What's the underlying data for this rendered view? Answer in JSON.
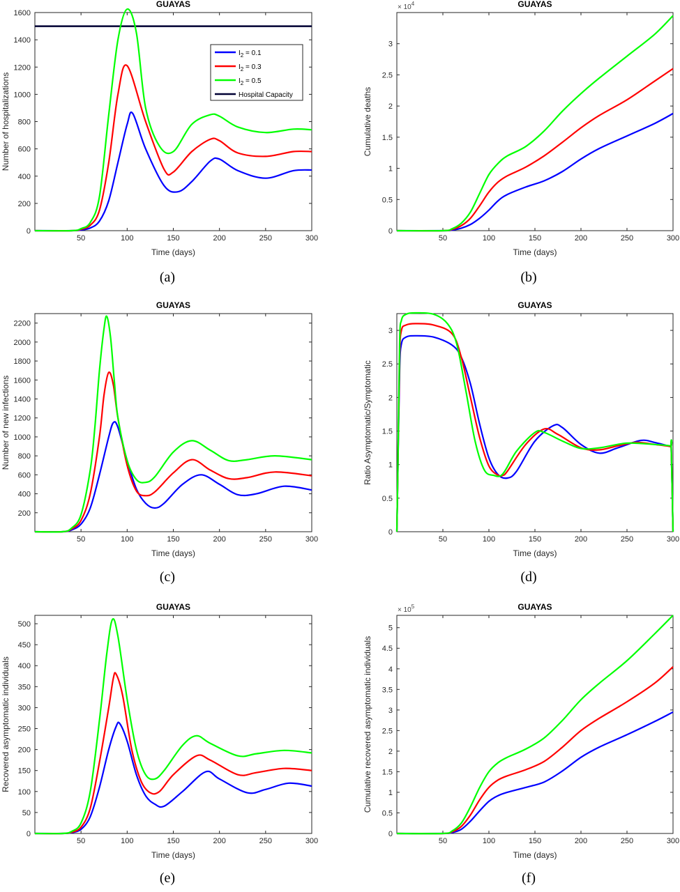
{
  "chart_data": [
    {
      "id": "a",
      "type": "line",
      "title": "GUAYAS",
      "xlabel": "Time (days)",
      "ylabel": "Number of hospitalizations",
      "xlim": [
        0,
        300
      ],
      "ylim": [
        0,
        1600
      ],
      "xticks": [
        50,
        100,
        150,
        200,
        250,
        300
      ],
      "yticks": [
        0,
        200,
        400,
        600,
        800,
        1000,
        1200,
        1400,
        1600
      ],
      "exponent": "",
      "caption": "(a)",
      "legend": {
        "position": "top-right",
        "entries": [
          {
            "pre": "I",
            "sub": "2",
            "post": " = 0.1",
            "color": "#0000ff"
          },
          {
            "pre": "I",
            "sub": "2",
            "post": " = 0.3",
            "color": "#ff0000"
          },
          {
            "pre": "I",
            "sub": "2",
            "post": " = 0.5",
            "color": "#00ff00"
          },
          {
            "pre": "Hospital Capacity",
            "sub": "",
            "post": "",
            "color": "#000033"
          }
        ]
      },
      "hline": {
        "y": 1500,
        "color": "#000033"
      },
      "series": [
        {
          "name": "I2 = 0.1",
          "color": "#0000ff",
          "x": [
            0,
            40,
            50,
            60,
            70,
            80,
            90,
            100,
            106,
            120,
            140,
            155,
            170,
            190,
            200,
            220,
            250,
            280,
            300
          ],
          "y": [
            0,
            0,
            5,
            20,
            70,
            220,
            500,
            780,
            860,
            600,
            330,
            285,
            360,
            510,
            525,
            440,
            385,
            440,
            445
          ]
        },
        {
          "name": "I2 = 0.3",
          "color": "#ff0000",
          "x": [
            0,
            40,
            50,
            60,
            70,
            80,
            90,
            100,
            120,
            140,
            150,
            170,
            190,
            200,
            220,
            250,
            280,
            300
          ],
          "y": [
            0,
            0,
            10,
            40,
            150,
            500,
            1000,
            1210,
            800,
            450,
            430,
            580,
            670,
            660,
            570,
            545,
            580,
            580
          ]
        },
        {
          "name": "I2 = 0.5",
          "color": "#00ff00",
          "x": [
            0,
            40,
            50,
            60,
            70,
            80,
            90,
            100,
            110,
            120,
            135,
            150,
            170,
            190,
            200,
            220,
            250,
            280,
            300
          ],
          "y": [
            0,
            0,
            15,
            60,
            250,
            850,
            1400,
            1625,
            1450,
            900,
            620,
            580,
            780,
            850,
            840,
            760,
            720,
            745,
            740
          ]
        }
      ]
    },
    {
      "id": "b",
      "type": "line",
      "title": "GUAYAS",
      "xlabel": "Time (days)",
      "ylabel": "Cumulative deaths",
      "xlim": [
        0,
        300
      ],
      "ylim": [
        0,
        3.5
      ],
      "xticks": [
        50,
        100,
        150,
        200,
        250,
        300
      ],
      "yticks": [
        0,
        0.5,
        1,
        1.5,
        2,
        2.5,
        3
      ],
      "exponent": "4",
      "caption": "(b)",
      "series": [
        {
          "name": "I2 = 0.1",
          "color": "#0000ff",
          "x": [
            0,
            50,
            60,
            70,
            80,
            90,
            100,
            110,
            120,
            140,
            160,
            180,
            200,
            220,
            250,
            280,
            300
          ],
          "y": [
            0,
            0,
            0.01,
            0.04,
            0.1,
            0.2,
            0.33,
            0.48,
            0.58,
            0.7,
            0.8,
            0.95,
            1.15,
            1.32,
            1.52,
            1.72,
            1.88
          ]
        },
        {
          "name": "I2 = 0.3",
          "color": "#ff0000",
          "x": [
            0,
            50,
            60,
            70,
            80,
            90,
            100,
            110,
            120,
            140,
            160,
            180,
            200,
            220,
            250,
            280,
            300
          ],
          "y": [
            0,
            0,
            0.02,
            0.08,
            0.2,
            0.4,
            0.62,
            0.78,
            0.88,
            1.02,
            1.2,
            1.42,
            1.65,
            1.85,
            2.1,
            2.4,
            2.6
          ]
        },
        {
          "name": "I2 = 0.5",
          "color": "#00ff00",
          "x": [
            0,
            50,
            60,
            70,
            80,
            90,
            100,
            110,
            120,
            140,
            160,
            180,
            200,
            220,
            250,
            280,
            300
          ],
          "y": [
            0,
            0,
            0.03,
            0.12,
            0.3,
            0.6,
            0.9,
            1.08,
            1.2,
            1.35,
            1.6,
            1.92,
            2.2,
            2.45,
            2.8,
            3.15,
            3.45
          ]
        }
      ]
    },
    {
      "id": "c",
      "type": "line",
      "title": "GUAYAS",
      "xlabel": "Time (days)",
      "ylabel": "Number of new infections",
      "xlim": [
        0,
        300
      ],
      "ylim": [
        0,
        2300
      ],
      "xticks": [
        50,
        100,
        150,
        200,
        250,
        300
      ],
      "yticks": [
        200,
        400,
        600,
        800,
        1000,
        1200,
        1400,
        1600,
        1800,
        2000,
        2200
      ],
      "exponent": "",
      "caption": "(c)",
      "series": [
        {
          "name": "I2 = 0.1",
          "color": "#0000ff",
          "x": [
            0,
            30,
            40,
            50,
            60,
            70,
            80,
            85,
            90,
            100,
            110,
            120,
            130,
            140,
            160,
            180,
            200,
            220,
            240,
            270,
            300
          ],
          "y": [
            0,
            0,
            20,
            80,
            250,
            600,
            1000,
            1150,
            1100,
            750,
            450,
            300,
            250,
            300,
            500,
            600,
            500,
            390,
            400,
            480,
            440
          ]
        },
        {
          "name": "I2 = 0.3",
          "color": "#ff0000",
          "x": [
            0,
            30,
            40,
            50,
            60,
            70,
            75,
            80,
            85,
            90,
            100,
            110,
            120,
            130,
            150,
            170,
            190,
            210,
            230,
            260,
            300
          ],
          "y": [
            0,
            0,
            30,
            120,
            400,
            1000,
            1450,
            1680,
            1550,
            1200,
            700,
            430,
            380,
            420,
            620,
            760,
            650,
            560,
            570,
            630,
            590
          ]
        },
        {
          "name": "I2 = 0.5",
          "color": "#00ff00",
          "x": [
            0,
            30,
            40,
            50,
            60,
            65,
            70,
            75,
            78,
            82,
            86,
            90,
            100,
            110,
            120,
            130,
            150,
            170,
            190,
            210,
            230,
            260,
            300
          ],
          "y": [
            0,
            0,
            40,
            180,
            650,
            1100,
            1700,
            2150,
            2270,
            2050,
            1600,
            1200,
            750,
            550,
            520,
            580,
            840,
            960,
            860,
            750,
            760,
            800,
            760
          ]
        }
      ]
    },
    {
      "id": "d",
      "type": "line",
      "title": "GUAYAS",
      "xlabel": "Time (days)",
      "ylabel": "Ratio Asymptomatic/Symptomatic",
      "xlim": [
        0,
        300
      ],
      "ylim": [
        0,
        3.25
      ],
      "xticks": [
        50,
        100,
        150,
        200,
        250,
        300
      ],
      "yticks": [
        0,
        0.5,
        1,
        1.5,
        2,
        2.5,
        3
      ],
      "exponent": "",
      "caption": "(d)",
      "series": [
        {
          "name": "I2 = 0.1",
          "color": "#0000ff",
          "x": [
            0,
            1,
            3,
            5,
            10,
            20,
            40,
            60,
            70,
            80,
            90,
            100,
            110,
            120,
            130,
            150,
            170,
            180,
            200,
            220,
            240,
            265,
            280,
            297,
            298,
            300
          ],
          "y": [
            0,
            0.8,
            2.4,
            2.8,
            2.9,
            2.92,
            2.9,
            2.78,
            2.6,
            2.2,
            1.6,
            1.1,
            0.85,
            0.8,
            0.9,
            1.35,
            1.58,
            1.55,
            1.3,
            1.17,
            1.25,
            1.36,
            1.33,
            1.27,
            1.26,
            0
          ]
        },
        {
          "name": "I2 = 0.3",
          "color": "#ff0000",
          "x": [
            0,
            1,
            3,
            5,
            10,
            20,
            40,
            60,
            70,
            80,
            90,
            100,
            110,
            115,
            120,
            140,
            160,
            175,
            200,
            220,
            240,
            260,
            280,
            297,
            298,
            300
          ],
          "y": [
            0,
            0.8,
            2.6,
            3.0,
            3.08,
            3.1,
            3.08,
            2.95,
            2.6,
            2.0,
            1.4,
            0.98,
            0.84,
            0.84,
            0.9,
            1.3,
            1.53,
            1.45,
            1.25,
            1.22,
            1.28,
            1.33,
            1.3,
            1.27,
            1.26,
            0
          ]
        },
        {
          "name": "I2 = 0.5",
          "color": "#00ff00",
          "x": [
            0,
            1,
            3,
            5,
            10,
            20,
            40,
            55,
            65,
            75,
            85,
            95,
            105,
            115,
            130,
            150,
            160,
            180,
            200,
            220,
            250,
            280,
            297,
            298,
            300
          ],
          "y": [
            0,
            0.8,
            2.8,
            3.15,
            3.24,
            3.26,
            3.24,
            3.1,
            2.8,
            2.1,
            1.35,
            0.92,
            0.84,
            0.86,
            1.2,
            1.48,
            1.48,
            1.35,
            1.24,
            1.25,
            1.32,
            1.3,
            1.28,
            1.27,
            0
          ]
        }
      ]
    },
    {
      "id": "e",
      "type": "line",
      "title": "GUAYAS",
      "xlabel": "Time (days)",
      "ylabel": "Recovered asymptomatic individuals",
      "xlim": [
        0,
        300
      ],
      "ylim": [
        0,
        520
      ],
      "xticks": [
        50,
        100,
        150,
        200,
        250,
        300
      ],
      "yticks": [
        0,
        50,
        100,
        150,
        200,
        250,
        300,
        350,
        400,
        450,
        500
      ],
      "exponent": "",
      "caption": "(e)",
      "series": [
        {
          "name": "I2 = 0.1",
          "color": "#0000ff",
          "x": [
            0,
            30,
            40,
            50,
            60,
            70,
            80,
            88,
            92,
            100,
            110,
            120,
            130,
            140,
            160,
            185,
            200,
            230,
            250,
            275,
            300
          ],
          "y": [
            0,
            0,
            2,
            10,
            40,
            110,
            200,
            255,
            262,
            220,
            140,
            90,
            70,
            65,
            100,
            147,
            130,
            97,
            105,
            120,
            113
          ]
        },
        {
          "name": "I2 = 0.3",
          "color": "#ff0000",
          "x": [
            0,
            30,
            40,
            50,
            60,
            70,
            80,
            85,
            88,
            95,
            105,
            115,
            125,
            135,
            150,
            175,
            190,
            220,
            240,
            270,
            300
          ],
          "y": [
            0,
            0,
            3,
            15,
            60,
            170,
            300,
            370,
            380,
            330,
            200,
            125,
            97,
            100,
            140,
            185,
            175,
            140,
            145,
            155,
            150
          ]
        },
        {
          "name": "I2 = 0.5",
          "color": "#00ff00",
          "x": [
            0,
            30,
            40,
            50,
            60,
            70,
            78,
            84,
            90,
            100,
            110,
            120,
            130,
            140,
            160,
            175,
            190,
            220,
            240,
            270,
            300
          ],
          "y": [
            0,
            0,
            5,
            25,
            100,
            270,
            430,
            510,
            470,
            320,
            200,
            140,
            130,
            150,
            210,
            233,
            215,
            185,
            190,
            198,
            192
          ]
        }
      ]
    },
    {
      "id": "f",
      "type": "line",
      "title": "GUAYAS",
      "xlabel": "Time (days)",
      "ylabel": "Cumulative recovered asymptomatic individuals",
      "xlim": [
        0,
        300
      ],
      "ylim": [
        0,
        5.3
      ],
      "xticks": [
        50,
        100,
        150,
        200,
        250,
        300
      ],
      "yticks": [
        0,
        0.5,
        1,
        1.5,
        2,
        2.5,
        3,
        3.5,
        4,
        4.5,
        5
      ],
      "exponent": "5",
      "caption": "(f)",
      "series": [
        {
          "name": "I2 = 0.1",
          "color": "#0000ff",
          "x": [
            0,
            50,
            60,
            70,
            80,
            90,
            100,
            110,
            120,
            140,
            160,
            180,
            200,
            220,
            250,
            280,
            300
          ],
          "y": [
            0,
            0,
            0.02,
            0.1,
            0.3,
            0.55,
            0.78,
            0.92,
            1.0,
            1.12,
            1.25,
            1.52,
            1.85,
            2.1,
            2.4,
            2.72,
            2.95
          ]
        },
        {
          "name": "I2 = 0.3",
          "color": "#ff0000",
          "x": [
            0,
            50,
            60,
            70,
            80,
            90,
            100,
            110,
            120,
            140,
            160,
            180,
            200,
            220,
            250,
            280,
            300
          ],
          "y": [
            0,
            0,
            0.04,
            0.17,
            0.45,
            0.82,
            1.12,
            1.3,
            1.4,
            1.55,
            1.75,
            2.1,
            2.5,
            2.8,
            3.2,
            3.65,
            4.05
          ]
        },
        {
          "name": "I2 = 0.5",
          "color": "#00ff00",
          "x": [
            0,
            50,
            60,
            70,
            80,
            90,
            100,
            110,
            120,
            140,
            160,
            180,
            200,
            220,
            250,
            280,
            300
          ],
          "y": [
            0,
            0,
            0.06,
            0.25,
            0.65,
            1.12,
            1.5,
            1.72,
            1.85,
            2.05,
            2.32,
            2.75,
            3.25,
            3.65,
            4.2,
            4.85,
            5.3
          ]
        }
      ]
    }
  ]
}
